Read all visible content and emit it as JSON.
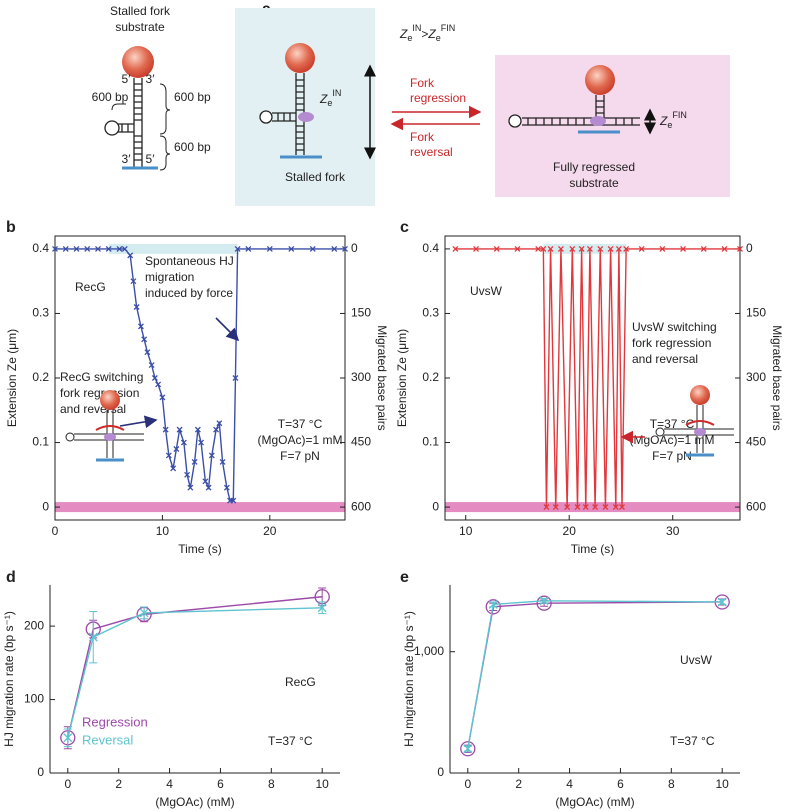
{
  "diagram": {
    "panel_label": "a",
    "title": [
      "Stalled fork",
      "substrate"
    ],
    "ends": [
      "5′",
      "3′",
      "3′",
      "5′"
    ],
    "lengths": [
      "600 bp",
      "600 bp",
      "600 bp"
    ],
    "z_in": {
      "main": "Z",
      "sub": "e",
      "sup": "IN"
    },
    "stalled_label": "Stalled fork",
    "relation": {
      "left": {
        "main": "Z",
        "sub": "e",
        "sup": "IN"
      },
      "op": ">",
      "right": {
        "main": "Z",
        "sub": "e",
        "sup": "FIN"
      }
    },
    "regression": [
      "Fork",
      "regression"
    ],
    "reversal": [
      "Fork",
      "reversal"
    ],
    "z_fin": {
      "main": "Z",
      "sub": "e",
      "sup": "FIN"
    },
    "regressed_label": [
      "Fully regressed",
      "substrate"
    ]
  },
  "chart_data": [
    {
      "type": "line",
      "panel_label": "b",
      "x_label": "Time (s)",
      "y_label": "Extension Ze (μm)",
      "y2_label": "Migrated base pairs",
      "xlim": [
        0,
        27
      ],
      "xticks": [
        0,
        10,
        20
      ],
      "ylim": [
        -0.02,
        0.42
      ],
      "yticks": [
        0,
        0.1,
        0.2,
        0.3,
        0.4
      ],
      "y2lim": [
        630,
        -30
      ],
      "y2ticks": [
        0,
        150,
        300,
        450,
        600
      ],
      "bands": [
        {
          "y": 0.4,
          "x": [
            5,
            17
          ],
          "color": "#d4ecf0"
        },
        {
          "y": 0,
          "color": "#e48cc2"
        }
      ],
      "series": [
        {
          "color": "#3b4ea8",
          "marker": "x",
          "x": [
            0,
            1,
            2,
            3,
            4,
            5,
            6,
            6.5,
            7,
            7.3,
            7.6,
            8,
            8.3,
            8.6,
            9,
            9.3,
            9.6,
            10,
            10.3,
            10.6,
            11,
            11.3,
            11.6,
            12,
            12.3,
            12.6,
            13,
            13.3,
            13.6,
            14,
            14.3,
            14.6,
            15,
            15.3,
            15.6,
            16,
            16.3,
            16.6,
            16.8,
            17,
            18,
            20,
            22,
            24,
            26,
            27
          ],
          "values": [
            0.4,
            0.4,
            0.4,
            0.4,
            0.4,
            0.4,
            0.4,
            0.4,
            0.39,
            0.35,
            0.31,
            0.28,
            0.26,
            0.24,
            0.22,
            0.2,
            0.19,
            0.17,
            0.12,
            0.08,
            0.06,
            0.09,
            0.12,
            0.1,
            0.05,
            0.03,
            0.07,
            0.12,
            0.1,
            0.04,
            0.03,
            0.08,
            0.12,
            0.13,
            0.07,
            0.03,
            0.01,
            0.01,
            0.2,
            0.4,
            0.4,
            0.4,
            0.4,
            0.4,
            0.4,
            0.4
          ]
        }
      ],
      "annotations": [
        [
          "RecG"
        ],
        [
          "Spontaneous HJ",
          "migration",
          "induced by force"
        ],
        [
          "RecG switching",
          "fork regression",
          "and reversal"
        ],
        [
          "T=37 °C",
          "(MgOAc)=1 mM",
          "F=7 pN"
        ]
      ]
    },
    {
      "type": "line",
      "panel_label": "c",
      "x_label": "Time (s)",
      "y_label": "Extension Ze (μm)",
      "y2_label": "Migrated base pairs",
      "xlim": [
        8,
        36.5
      ],
      "xticks": [
        10,
        20,
        30
      ],
      "ylim": [
        -0.02,
        0.42
      ],
      "yticks": [
        0,
        0.1,
        0.2,
        0.3,
        0.4
      ],
      "y2lim": [
        630,
        -30
      ],
      "y2ticks": [
        0,
        150,
        300,
        450,
        600
      ],
      "bands": [
        {
          "y": 0.4,
          "x": [
            17.5,
            25.5
          ],
          "color": "#d4ecf0"
        },
        {
          "y": 0,
          "color": "#e48cc2"
        }
      ],
      "series": [
        {
          "color": "#e0383c",
          "marker": "x",
          "x": [
            9,
            11,
            13,
            15,
            17,
            17.5,
            17.8,
            18.2,
            18.7,
            19.2,
            19.8,
            20.3,
            20.8,
            21.2,
            21.6,
            22,
            22.5,
            23,
            23.5,
            24,
            24.5,
            24.8,
            25.1,
            25.5,
            27,
            29,
            31,
            33,
            35,
            36.5
          ],
          "values": [
            0.4,
            0.4,
            0.4,
            0.4,
            0.4,
            0.4,
            0,
            0.4,
            0,
            0.4,
            0,
            0.4,
            0,
            0.4,
            0,
            0.4,
            0,
            0.4,
            0,
            0.4,
            0,
            0.4,
            0,
            0.4,
            0.4,
            0.4,
            0.4,
            0.4,
            0.4,
            0.4
          ]
        }
      ],
      "annotations": [
        [
          "UvsW"
        ],
        [
          "UvsW switching",
          "fork regression",
          "and reversal"
        ],
        [
          "T=37 °C",
          "(MgOAc)=1 mM",
          "F=7 pN"
        ]
      ]
    },
    {
      "type": "errorline",
      "panel_label": "d",
      "x_label": "(MgOAc) (mM)",
      "y_label": "HJ migration rate (bp s⁻¹)",
      "xlim": [
        -0.7,
        10.7
      ],
      "xticks": [
        0,
        2,
        4,
        6,
        8,
        10
      ],
      "ylim": [
        0,
        256
      ],
      "yticks": [
        0,
        100,
        200
      ],
      "x": [
        0,
        1,
        3,
        10
      ],
      "series": [
        {
          "name": "Regression",
          "color": "#9c4aa8",
          "marker": "circle",
          "values": [
            48,
            196,
            216,
            240
          ],
          "errors": [
            15,
            12,
            10,
            12
          ]
        },
        {
          "name": "Reversal",
          "color": "#5ec4cf",
          "marker": "x",
          "values": [
            48,
            185,
            218,
            225
          ],
          "errors": [
            12,
            35,
            8,
            8
          ]
        }
      ],
      "annotations": [
        [
          "RecG"
        ],
        [
          "T=37 °C"
        ]
      ]
    },
    {
      "type": "errorline",
      "panel_label": "e",
      "x_label": "(MgOAc) (mM)",
      "y_label": "HJ migration rate (bp s⁻¹)",
      "xlim": [
        -0.7,
        10.7
      ],
      "xticks": [
        0,
        2,
        4,
        6,
        8,
        10
      ],
      "ylim": [
        0,
        1550
      ],
      "yticks": [
        0,
        {
          "value": 1000,
          "label": "1,000"
        }
      ],
      "x": [
        0,
        1,
        3,
        10
      ],
      "series": [
        {
          "color": "#9c4aa8",
          "marker": "circle",
          "values": [
            200,
            1370,
            1400,
            1410
          ],
          "errors": [
            30,
            30,
            25,
            25
          ]
        },
        {
          "color": "#5ec4cf",
          "marker": "x",
          "values": [
            200,
            1390,
            1420,
            1410
          ],
          "errors": [
            20,
            20,
            20,
            20
          ]
        }
      ],
      "annotations": [
        [
          "UvsW"
        ],
        [
          "T=37 °C"
        ]
      ]
    }
  ]
}
